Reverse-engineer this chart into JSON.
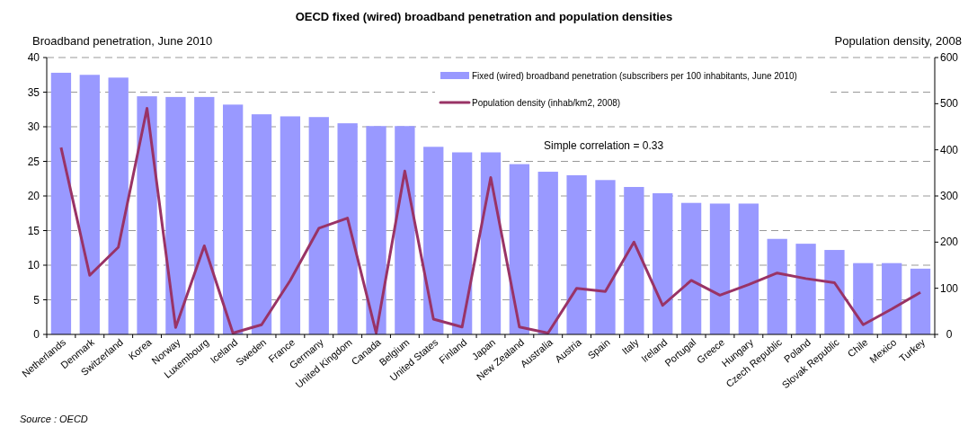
{
  "chart_data": {
    "type": "bar",
    "title": "OECD fixed (wired) broadband penetration and population densities",
    "ylabel": "Broadband penetration, June 2010",
    "y2label": "Population density, 2008",
    "categories": [
      "Netherlands",
      "Denmark",
      "Switzerland",
      "Korea",
      "Norway",
      "Luxembourg",
      "Iceland",
      "Sweden",
      "France",
      "Germany",
      "United Kingdom",
      "Canada",
      "Belgium",
      "United States",
      "Finland",
      "Japan",
      "New Zealand",
      "Australia",
      "Austria",
      "Spain",
      "Italy",
      "Ireland",
      "Portugal",
      "Greece",
      "Hungary",
      "Czech Republic",
      "Poland",
      "Slovak Republic",
      "Chile",
      "Mexico",
      "Turkey"
    ],
    "series": [
      {
        "name": "Fixed (wired) broadband penetration (subscribers per 100 inhabitants, June 2010)",
        "color": "#9999ff",
        "values": [
          37.8,
          37.5,
          37.1,
          34.4,
          34.3,
          34.3,
          33.2,
          31.8,
          31.5,
          31.4,
          30.5,
          30.1,
          30.1,
          27.1,
          26.3,
          26.3,
          24.6,
          23.5,
          23.0,
          22.3,
          21.3,
          20.4,
          19.0,
          18.9,
          18.9,
          13.8,
          13.1,
          12.2,
          10.3,
          10.3,
          9.5
        ]
      },
      {
        "name": "Population density (inhab/km2, 2008)",
        "type": "line",
        "axis": "y2",
        "color": "#993366",
        "values": [
          405,
          128,
          189,
          490,
          15,
          192,
          3,
          21,
          117,
          230,
          252,
          3,
          354,
          33,
          16,
          340,
          16,
          3,
          100,
          93,
          200,
          63,
          117,
          85,
          108,
          133,
          121,
          112,
          21,
          55,
          91
        ]
      }
    ],
    "ylim": [
      0,
      40
    ],
    "yticks": [
      0,
      5,
      10,
      15,
      20,
      25,
      30,
      35,
      40
    ],
    "y2lim": [
      0,
      600
    ],
    "y2ticks": [
      0,
      100,
      200,
      300,
      400,
      500,
      600
    ],
    "grid": "y",
    "legend": "top right",
    "marker": "none",
    "line_style": "solid",
    "annotations": [
      "Simple correlation = 0.33",
      "Source : OECD"
    ]
  }
}
